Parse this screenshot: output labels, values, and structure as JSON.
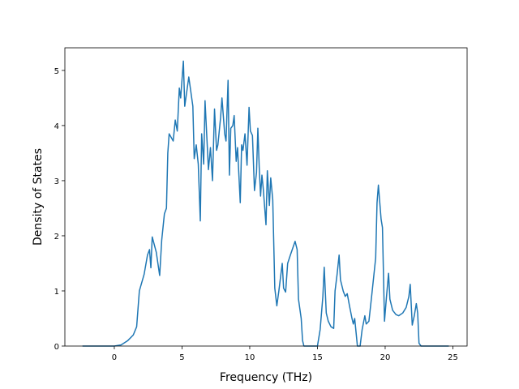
{
  "chart_data": {
    "type": "line",
    "x_label": "Frequency (THz)",
    "y_label": "Density of States",
    "xlim": [
      -3.65,
      26.05
    ],
    "ylim": [
      0,
      5.41
    ],
    "xticks": [
      0,
      5,
      10,
      15,
      20,
      25
    ],
    "yticks": [
      0,
      1,
      2,
      3,
      4,
      5
    ],
    "x": [
      -2.35,
      0,
      0.5,
      1.0,
      1.4,
      1.65,
      1.85,
      2.2,
      2.45,
      2.6,
      2.7,
      2.8,
      3.1,
      3.35,
      3.5,
      3.7,
      3.85,
      3.95,
      4.05,
      4.35,
      4.5,
      4.65,
      4.8,
      4.9,
      5.1,
      5.2,
      5.5,
      5.8,
      5.9,
      6.05,
      6.2,
      6.35,
      6.45,
      6.6,
      6.7,
      6.95,
      7.1,
      7.25,
      7.4,
      7.55,
      7.65,
      7.85,
      7.95,
      8.15,
      8.25,
      8.4,
      8.5,
      8.6,
      8.75,
      8.85,
      9.0,
      9.1,
      9.3,
      9.4,
      9.5,
      9.65,
      9.8,
      9.95,
      10.05,
      10.2,
      10.35,
      10.5,
      10.6,
      10.7,
      10.8,
      10.9,
      11.0,
      11.2,
      11.3,
      11.45,
      11.55,
      11.7,
      11.85,
      12.0,
      12.15,
      12.4,
      12.5,
      12.65,
      12.8,
      13.0,
      13.35,
      13.5,
      13.6,
      13.8,
      13.9,
      14.0,
      15.0,
      15.2,
      15.4,
      15.5,
      15.65,
      15.8,
      16.0,
      16.2,
      16.3,
      16.45,
      16.6,
      16.7,
      16.9,
      17.05,
      17.2,
      17.35,
      17.55,
      17.65,
      17.75,
      17.85,
      17.95,
      18.15,
      18.3,
      18.5,
      18.6,
      18.8,
      19.0,
      19.3,
      19.4,
      19.5,
      19.7,
      19.8,
      19.95,
      20.1,
      20.25,
      20.35,
      20.55,
      20.8,
      21.0,
      21.3,
      21.55,
      21.75,
      21.85,
      22.0,
      22.15,
      22.3,
      22.4,
      22.5,
      22.65,
      24.7
    ],
    "series": [
      {
        "color": "#1f77b4",
        "values": [
          0,
          0,
          0.02,
          0.1,
          0.2,
          0.35,
          1.0,
          1.3,
          1.65,
          1.75,
          1.42,
          1.98,
          1.7,
          1.28,
          1.92,
          2.4,
          2.5,
          3.5,
          3.85,
          3.72,
          4.1,
          3.9,
          4.68,
          4.5,
          5.17,
          4.35,
          4.88,
          4.35,
          3.4,
          3.65,
          3.3,
          2.27,
          3.85,
          3.3,
          4.45,
          3.2,
          3.6,
          3.0,
          4.3,
          3.55,
          3.65,
          4.15,
          4.5,
          3.85,
          3.72,
          4.82,
          3.1,
          3.95,
          4.0,
          4.18,
          3.35,
          3.6,
          2.6,
          3.65,
          3.55,
          3.85,
          3.28,
          4.33,
          3.9,
          3.82,
          2.82,
          3.15,
          3.95,
          3.25,
          2.72,
          3.1,
          2.85,
          2.2,
          3.18,
          2.55,
          3.05,
          2.65,
          1.05,
          0.73,
          1.0,
          1.5,
          1.05,
          0.98,
          1.5,
          1.65,
          1.9,
          1.75,
          0.85,
          0.5,
          0.1,
          0,
          0,
          0.3,
          0.9,
          1.43,
          0.6,
          0.45,
          0.35,
          0.32,
          1.0,
          1.3,
          1.65,
          1.2,
          1.0,
          0.9,
          0.95,
          0.75,
          0.5,
          0.4,
          0.5,
          0.25,
          0,
          0,
          0.3,
          0.55,
          0.4,
          0.45,
          0.9,
          1.6,
          2.6,
          2.92,
          2.3,
          2.15,
          0.45,
          0.9,
          1.32,
          0.85,
          0.65,
          0.57,
          0.55,
          0.6,
          0.7,
          0.9,
          1.12,
          0.38,
          0.55,
          0.77,
          0.6,
          0.05,
          0,
          0
        ]
      }
    ]
  }
}
